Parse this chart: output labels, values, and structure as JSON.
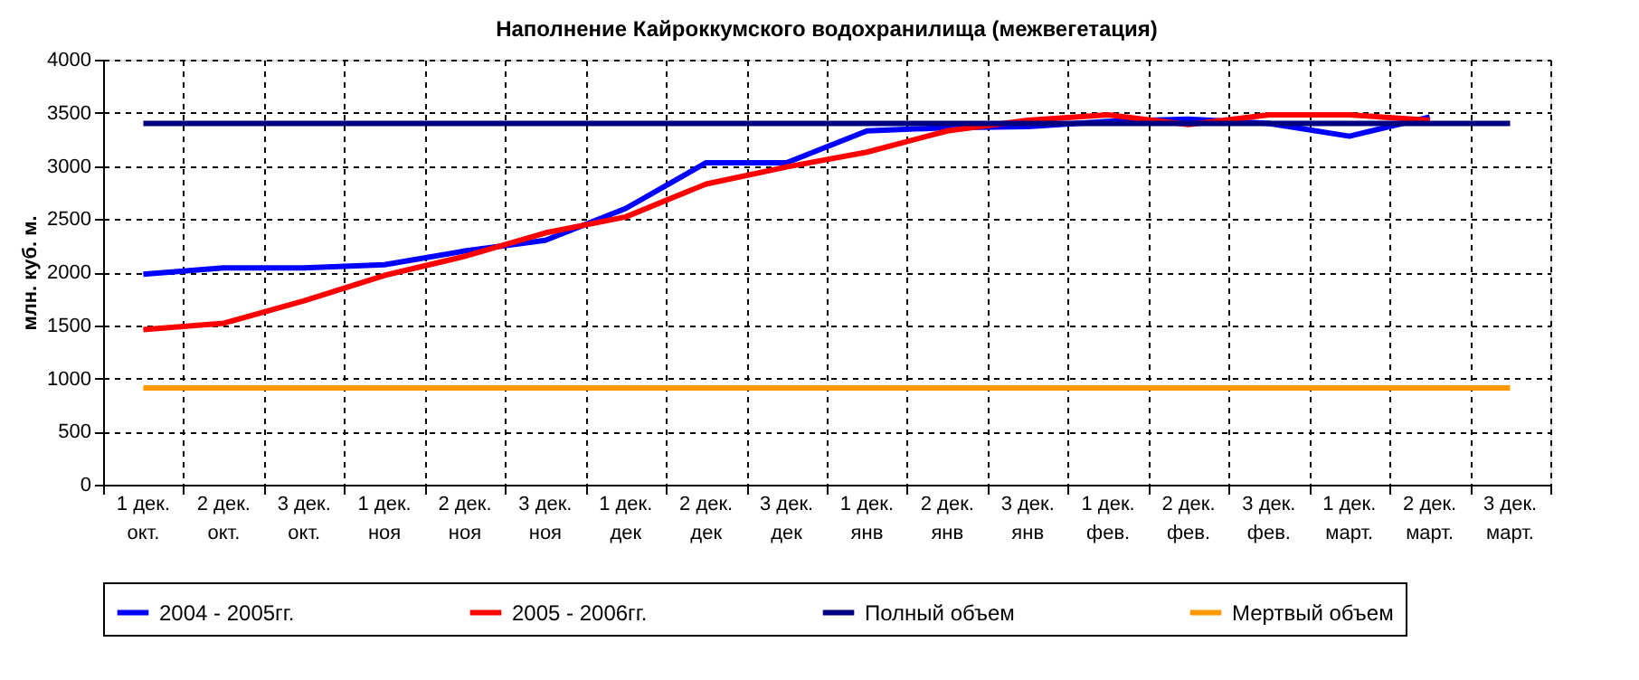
{
  "chart_data": {
    "type": "line",
    "title": "Наполнение Кайроккумского водохранилища (межвегетация)",
    "ylabel": "млн. куб. м.",
    "categories": [
      "1 дек.\nокт.",
      "2 дек.\nокт.",
      "3 дек.\nокт.",
      "1 дек.\nноя",
      "2 дек.\nноя",
      "3 дек.\nноя",
      "1 дек.\nдек",
      "2 дек.\nдек",
      "3 дек.\nдек",
      "1 дек.\nянв",
      "2 дек.\nянв",
      "3 дек.\nянв",
      "1 дек.\nфев.",
      "2 дек.\nфев.",
      "3 дек.\nфев.",
      "1 дек.\nмарт.",
      "2 дек.\nмарт.",
      "3 дек.\nмарт."
    ],
    "series": [
      {
        "name": "2004 - 2005гг.",
        "color": "#0000ff",
        "values": [
          1980,
          2040,
          2040,
          2070,
          2200,
          2300,
          2600,
          3030,
          3030,
          3330,
          3360,
          3370,
          3420,
          3440,
          3400,
          3280,
          3460,
          null
        ]
      },
      {
        "name": "2005 - 2006гг.",
        "color": "#ff0000",
        "values": [
          1460,
          1520,
          1730,
          1970,
          2150,
          2370,
          2520,
          2830,
          2990,
          3130,
          3330,
          3430,
          3480,
          3390,
          3480,
          3480,
          3430,
          null
        ]
      },
      {
        "name": "Полный объем",
        "color": "#000080",
        "values": [
          3400,
          3400,
          3400,
          3400,
          3400,
          3400,
          3400,
          3400,
          3400,
          3400,
          3400,
          3400,
          3400,
          3400,
          3400,
          3400,
          3400,
          3400
        ]
      },
      {
        "name": "Мертвый объем",
        "color": "#ff9900",
        "values": [
          910,
          910,
          910,
          910,
          910,
          910,
          910,
          910,
          910,
          910,
          910,
          910,
          910,
          910,
          910,
          910,
          910,
          910
        ]
      }
    ],
    "ylim": [
      0,
      4000
    ],
    "yticks": [
      0,
      500,
      1000,
      1500,
      2000,
      2500,
      3000,
      3500,
      4000
    ],
    "grid": true,
    "legend": "bottom",
    "marker": "none",
    "line_style": "solid"
  }
}
